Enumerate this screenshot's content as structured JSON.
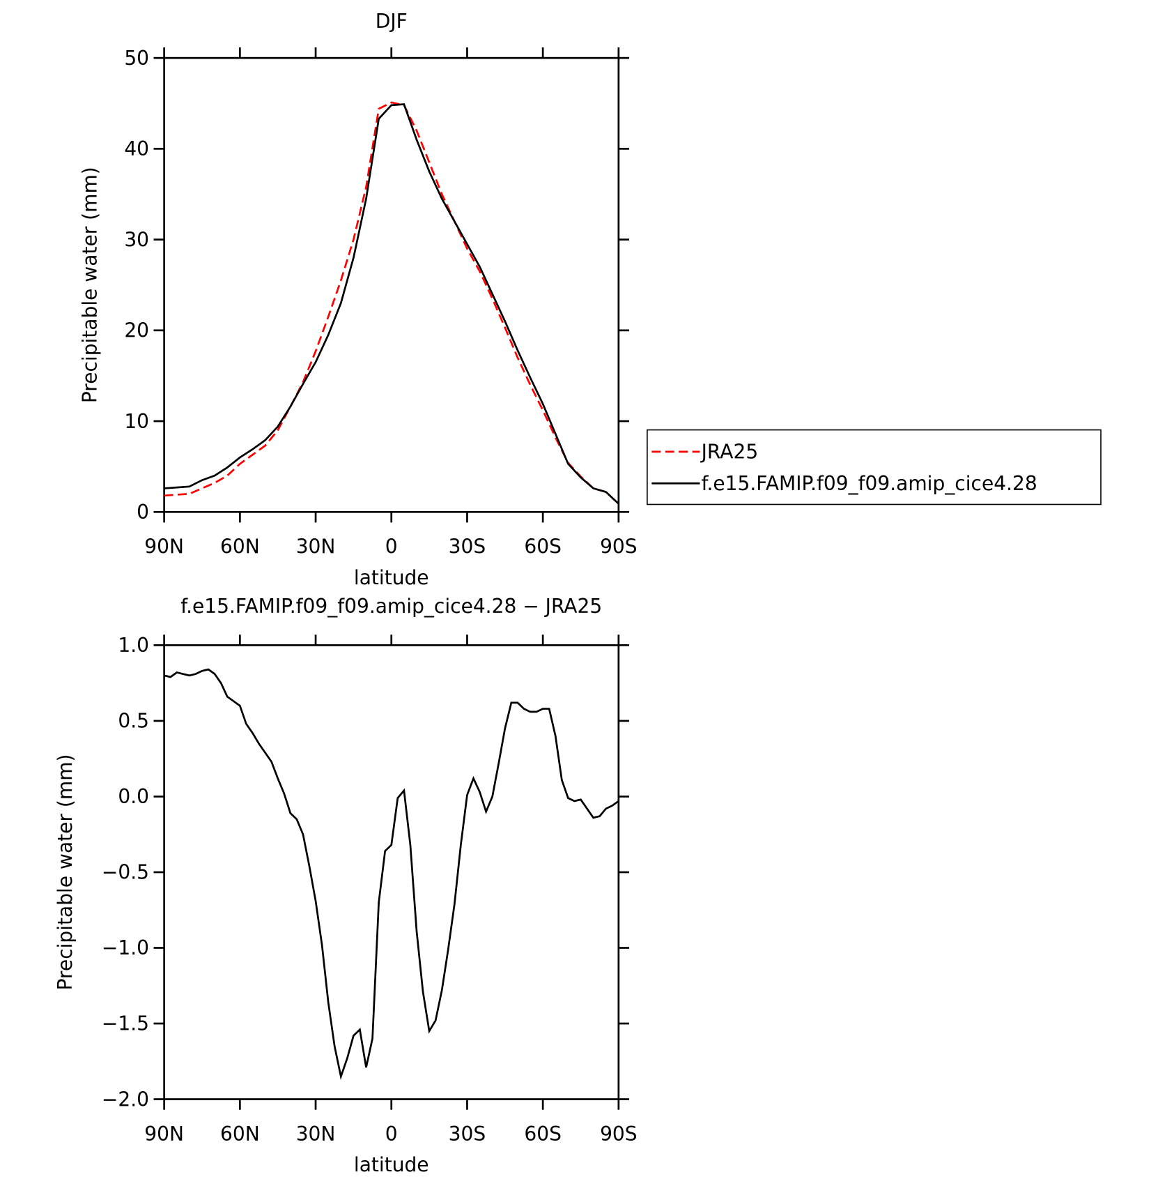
{
  "chart_data": [
    {
      "type": "line",
      "title": "DJF",
      "xlabel": "latitude",
      "ylabel": "Precipitable water (mm)",
      "x": [
        90,
        85,
        80,
        75,
        70,
        65,
        60,
        55,
        50,
        45,
        40,
        35,
        30,
        25,
        20,
        15,
        10,
        5,
        0,
        -5,
        -10,
        -15,
        -20,
        -25,
        -30,
        -35,
        -40,
        -45,
        -50,
        -55,
        -60,
        -65,
        -70,
        -75,
        -80,
        -85,
        -90
      ],
      "series": [
        {
          "name": "JRA25",
          "color": "#ff0000",
          "linestyle": "dashed",
          "values": [
            1.8,
            1.9,
            2.0,
            2.6,
            3.2,
            4.0,
            5.3,
            6.3,
            7.3,
            9.0,
            11.6,
            14.3,
            17.7,
            21.5,
            25.5,
            30,
            35.8,
            44.4,
            45.1,
            44.8,
            42,
            38.5,
            35,
            32,
            29,
            26.5,
            23.5,
            20.3,
            17,
            14,
            11.2,
            8.2,
            5.4,
            3.9,
            2.6,
            2.2,
            0.9
          ]
        },
        {
          "name": "f.e15.FAMIP.f09_f09.amip_cice4.28",
          "color": "#000000",
          "linestyle": "solid",
          "values": [
            2.6,
            2.7,
            2.8,
            3.5,
            4.0,
            4.9,
            6.0,
            6.9,
            7.9,
            9.4,
            11.6,
            14.1,
            16.5,
            19.5,
            23,
            28,
            34.5,
            43.3,
            44.8,
            44.9,
            41,
            37.5,
            34.5,
            32,
            29.5,
            27,
            24,
            21,
            17.8,
            14.8,
            11.9,
            8.6,
            5.3,
            3.8,
            2.6,
            2.2,
            0.9
          ]
        }
      ],
      "xlim": [
        90,
        -90
      ],
      "xticks": [
        {
          "value": 90,
          "label": "90N"
        },
        {
          "value": 60,
          "label": "60N"
        },
        {
          "value": 30,
          "label": "30N"
        },
        0,
        {
          "value": -30,
          "label": "30S"
        },
        {
          "value": -60,
          "label": "60S"
        },
        {
          "value": -90,
          "label": "90S"
        }
      ],
      "ylim": [
        0,
        50
      ],
      "yticks": [
        0,
        10,
        20,
        30,
        40,
        50
      ],
      "legend": "right"
    },
    {
      "type": "line",
      "title": "f.e15.FAMIP.f09_f09.amip_cice4.28 − JRA25",
      "xlabel": "latitude",
      "ylabel": "Precipitable water (mm)",
      "x": [
        90,
        87.5,
        85,
        82.5,
        80,
        77.5,
        75,
        72.5,
        70,
        67.5,
        65,
        62.5,
        60,
        57.5,
        55,
        52.5,
        50,
        47.5,
        45,
        42.5,
        40,
        37.5,
        35,
        32.5,
        30,
        27.5,
        25,
        22.5,
        20,
        17.5,
        15,
        12.5,
        10,
        7.5,
        5,
        2.5,
        0,
        -2.5,
        -5,
        -7.5,
        -10,
        -12.5,
        -15,
        -17.5,
        -20,
        -22.5,
        -25,
        -27.5,
        -30,
        -32.5,
        -35,
        -37.5,
        -40,
        -42.5,
        -45,
        -47.5,
        -50,
        -52.5,
        -55,
        -57.5,
        -60,
        -62.5,
        -65,
        -67.5,
        -70,
        -72.5,
        -75,
        -77.5,
        -80,
        -82.5,
        -85,
        -87.5,
        -90
      ],
      "series": [
        {
          "color": "#000000",
          "linestyle": "solid",
          "values": [
            0.8,
            0.79,
            0.82,
            0.81,
            0.8,
            0.81,
            0.83,
            0.84,
            0.81,
            0.75,
            0.66,
            0.63,
            0.6,
            0.48,
            0.42,
            0.35,
            0.29,
            0.23,
            0.12,
            0.02,
            -0.11,
            -0.15,
            -0.25,
            -0.46,
            -0.69,
            -0.98,
            -1.36,
            -1.65,
            -1.85,
            -1.73,
            -1.58,
            -1.54,
            -1.79,
            -1.6,
            -0.7,
            -0.36,
            -0.32,
            -0.01,
            0.04,
            -0.32,
            -0.89,
            -1.29,
            -1.55,
            -1.48,
            -1.28,
            -1.01,
            -0.71,
            -0.32,
            0.01,
            0.12,
            0.03,
            -0.1,
            0.0,
            0.22,
            0.45,
            0.62,
            0.62,
            0.58,
            0.56,
            0.56,
            0.58,
            0.58,
            0.4,
            0.11,
            -0.01,
            -0.03,
            -0.02,
            -0.08,
            -0.14,
            -0.13,
            -0.08,
            -0.06,
            -0.03
          ]
        }
      ],
      "xlim": [
        90,
        -90
      ],
      "xticks": [
        {
          "value": 90,
          "label": "90N"
        },
        {
          "value": 60,
          "label": "60N"
        },
        {
          "value": 30,
          "label": "30N"
        },
        0,
        {
          "value": -30,
          "label": "30S"
        },
        {
          "value": -60,
          "label": "60S"
        },
        {
          "value": -90,
          "label": "90S"
        }
      ],
      "ylim": [
        -2,
        1
      ],
      "yticks": [
        {
          "value": -2,
          "label": "−2.0"
        },
        {
          "value": -1.5,
          "label": "−1.5"
        },
        {
          "value": -1,
          "label": "−1.0"
        },
        {
          "value": -0.5,
          "label": "−0.5"
        },
        {
          "value": 0,
          "label": "0.0"
        },
        0.5,
        {
          "value": 1,
          "label": "1.0"
        }
      ]
    }
  ]
}
